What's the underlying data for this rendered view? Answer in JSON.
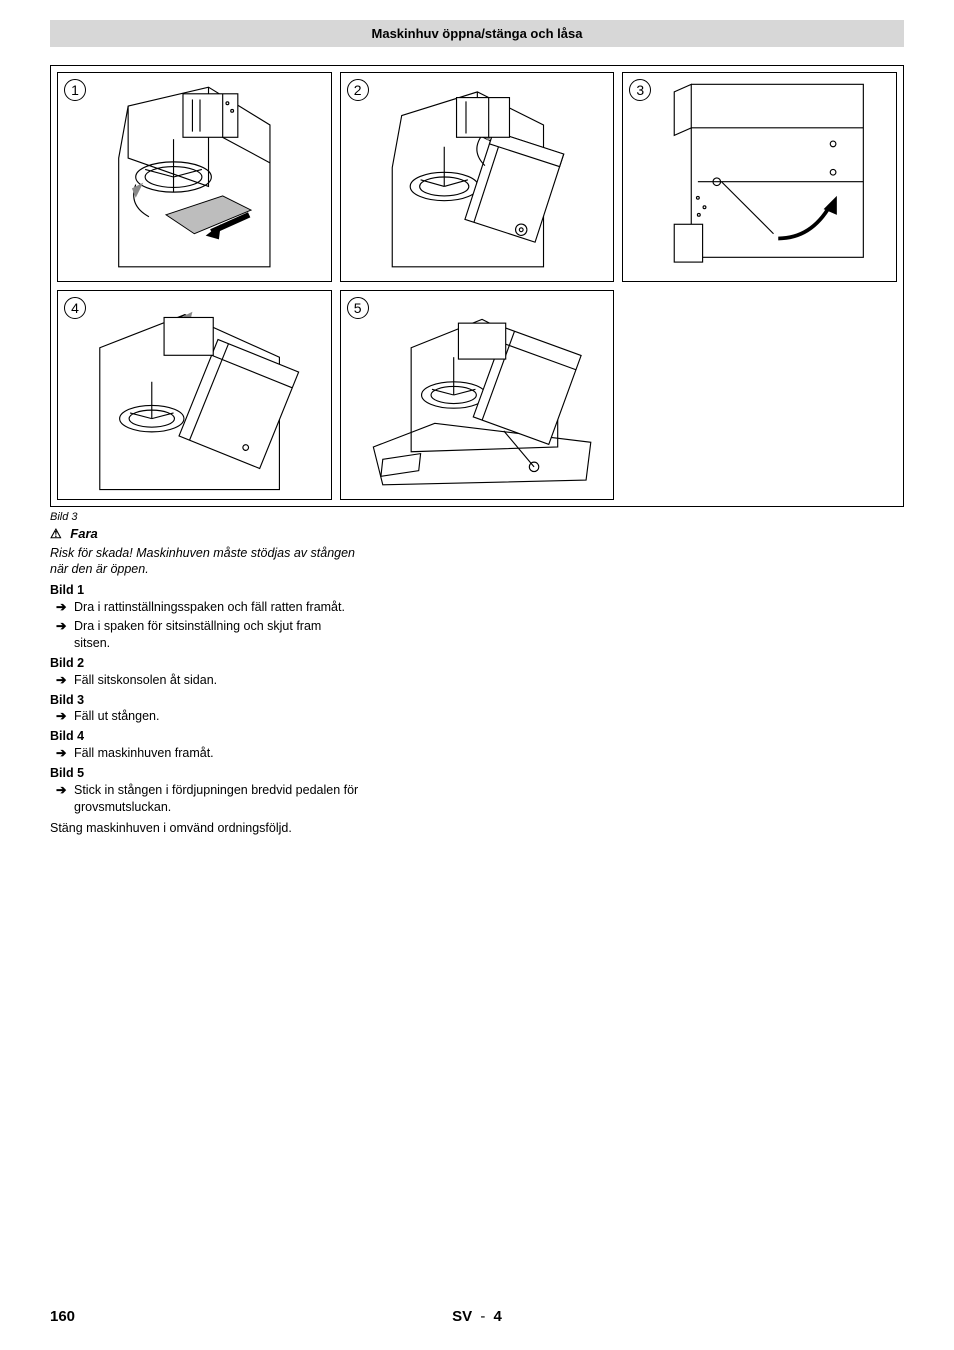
{
  "header": {
    "title": "Maskinhuv öppna/stänga och låsa"
  },
  "figure": {
    "panels": [
      "1",
      "2",
      "3",
      "4",
      "5"
    ],
    "caption": "Bild 3"
  },
  "warning": {
    "title": "Fara",
    "text": "Risk för skada! Maskinhuven måste stödjas av stången när den är öppen."
  },
  "steps": [
    {
      "label": "Bild 1",
      "items": [
        "Dra i rattinställningsspaken och fäll ratten framåt.",
        "Dra i spaken för sitsinställning och skjut fram sitsen."
      ]
    },
    {
      "label": "Bild 2",
      "items": [
        "Fäll sitskonsolen åt sidan."
      ]
    },
    {
      "label": "Bild 3",
      "items": [
        "Fäll ut stången."
      ]
    },
    {
      "label": "Bild 4",
      "items": [
        "Fäll maskinhuven framåt."
      ]
    },
    {
      "label": "Bild 5",
      "items": [
        "Stick in stången i fördjupningen bredvid pedalen för grovsmutsluckan."
      ]
    }
  ],
  "closing": "Stäng maskinhuven i omvänd ordningsföljd.",
  "footer": {
    "page": "160",
    "lang": "SV",
    "sub": "4"
  }
}
